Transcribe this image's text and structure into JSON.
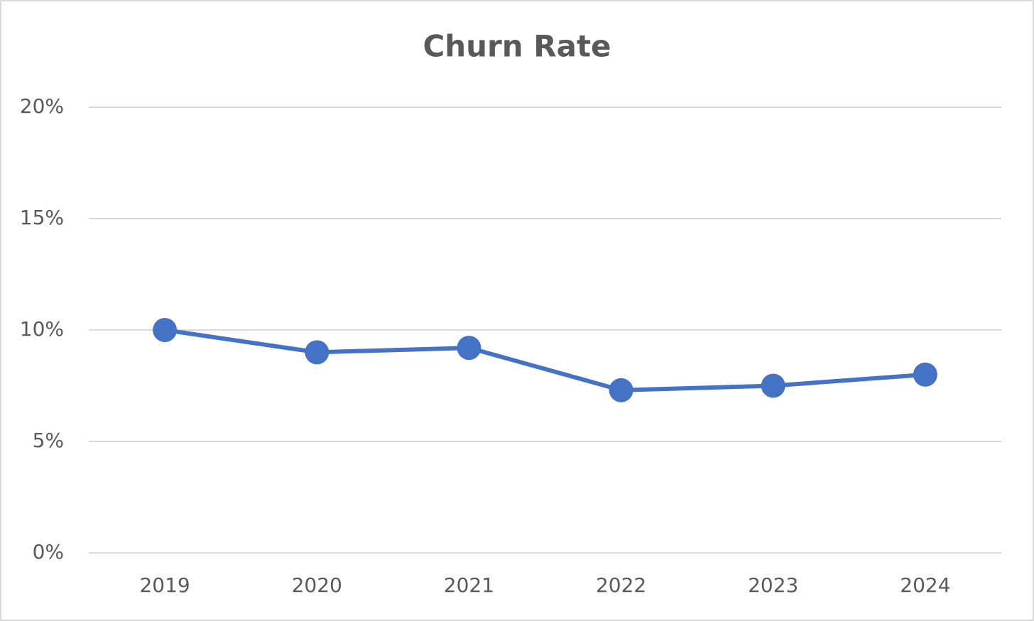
{
  "chart_data": {
    "type": "line",
    "title": "Churn Rate",
    "categories": [
      "2019",
      "2020",
      "2021",
      "2022",
      "2023",
      "2024"
    ],
    "series": [
      {
        "name": "Churn Rate",
        "color": "#4472c4",
        "values": [
          10,
          9.0,
          9.2,
          7.3,
          7.5,
          8.0
        ]
      }
    ],
    "ylim": [
      0,
      20
    ],
    "yticks": [
      {
        "value": 0,
        "label": "0%"
      },
      {
        "value": 5,
        "label": "5%"
      },
      {
        "value": 10,
        "label": "10%"
      },
      {
        "value": 15,
        "label": "15%"
      },
      {
        "value": 20,
        "label": "20%"
      }
    ],
    "grid": true
  }
}
